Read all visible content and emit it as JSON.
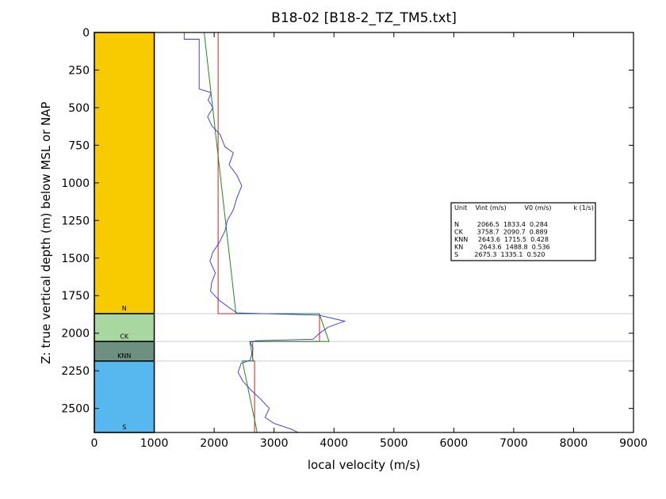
{
  "chart_data": {
    "type": "line",
    "title": "B18-02 [B18-2_TZ_TM5.txt]",
    "xlabel": "local velocity (m/s)",
    "ylabel": "Z: true vertical depth (m) below MSL or NAP",
    "xlim": [
      0,
      9000
    ],
    "ylim": [
      0,
      2660
    ],
    "y_inverted": true,
    "grid": false,
    "xticks": [
      0,
      1000,
      2000,
      3000,
      4000,
      5000,
      6000,
      7000,
      8000,
      9000
    ],
    "yticks": [
      0,
      250,
      500,
      750,
      1000,
      1250,
      1500,
      1750,
      2000,
      2250,
      2500
    ],
    "xtick_labels": [
      "0",
      "1000",
      "2000",
      "3000",
      "4000",
      "5000",
      "6000",
      "7000",
      "8000",
      "9000"
    ],
    "ytick_labels": [
      "0",
      "250",
      "500",
      "750",
      "1000",
      "1250",
      "1500",
      "1750",
      "2000",
      "2250",
      "2500"
    ],
    "units": [
      {
        "name": "N",
        "top": 0,
        "bottom": 1870,
        "color": "#f8cb00"
      },
      {
        "name": "CK",
        "top": 1870,
        "bottom": 2055,
        "color": "#a8d8a0"
      },
      {
        "name": "KNN",
        "top": 2055,
        "bottom": 2185,
        "color": "#6e9080"
      },
      {
        "name": "S",
        "top": 2185,
        "bottom": 2660,
        "color": "#56b8ee"
      }
    ],
    "unit_label_depths": [
      {
        "name": "N",
        "depth": 1850
      },
      {
        "name": "CK",
        "depth": 2035
      },
      {
        "name": "KNN",
        "depth": 2165
      },
      {
        "name": "S",
        "depth": 2640
      }
    ],
    "boundaries": [
      1870,
      2055,
      2185,
      2660
    ],
    "column_x_range": [
      0,
      1000
    ],
    "table": {
      "header": "Unit    Vint (m/s)         V0 (m/s)           k (1/s)",
      "rows": [
        "N         2066.5  1833.4  0.284",
        "CK       3758.7  2090.7  0.889",
        "KNN     2643.6  1715.5  0.428",
        "KN        2643.6  1488.8  0.536",
        "S        2675.3  1335.1  0.520"
      ]
    },
    "series": [
      {
        "kind": "vint",
        "color": "#d02020",
        "segments": [
          {
            "v": 2066.5,
            "z0": 0,
            "z1": 1870
          },
          {
            "v": 3758.7,
            "z0": 1870,
            "z1": 2055
          },
          {
            "v": 2643.6,
            "z0": 2055,
            "z1": 2185
          },
          {
            "v": 2675.3,
            "z0": 2185,
            "z1": 2660
          }
        ]
      },
      {
        "kind": "v0k",
        "color": "#1a8c1a",
        "segments": [
          {
            "v0": 1833.4,
            "k": 0.284,
            "z0": 0,
            "z1": 1870
          },
          {
            "v0": 2090.7,
            "k": 0.889,
            "z0": 1870,
            "z1": 2055
          },
          {
            "v0": 1715.5,
            "k": 0.428,
            "z0": 2055,
            "z1": 2185
          },
          {
            "v0": 1335.1,
            "k": 0.52,
            "z0": 2185,
            "z1": 2660
          }
        ]
      },
      {
        "kind": "log",
        "color": "#3030ee",
        "points": [
          [
            1500,
            0
          ],
          [
            1500,
            45
          ],
          [
            1750,
            45
          ],
          [
            1750,
            375
          ],
          [
            1780,
            380
          ],
          [
            1950,
            400
          ],
          [
            1900,
            450
          ],
          [
            1980,
            500
          ],
          [
            1890,
            560
          ],
          [
            1960,
            620
          ],
          [
            2100,
            680
          ],
          [
            2180,
            760
          ],
          [
            2320,
            800
          ],
          [
            2250,
            880
          ],
          [
            2380,
            950
          ],
          [
            2460,
            1020
          ],
          [
            2380,
            1100
          ],
          [
            2320,
            1180
          ],
          [
            2220,
            1250
          ],
          [
            2180,
            1320
          ],
          [
            2080,
            1400
          ],
          [
            1980,
            1460
          ],
          [
            1930,
            1520
          ],
          [
            2020,
            1600
          ],
          [
            1960,
            1660
          ],
          [
            1940,
            1720
          ],
          [
            2080,
            1780
          ],
          [
            2250,
            1830
          ],
          [
            2380,
            1865
          ],
          [
            3750,
            1880
          ],
          [
            4180,
            1920
          ],
          [
            3900,
            1960
          ],
          [
            3760,
            2000
          ],
          [
            3650,
            2040
          ],
          [
            2700,
            2050
          ],
          [
            2600,
            2060
          ],
          [
            2650,
            2100
          ],
          [
            2620,
            2150
          ],
          [
            2600,
            2180
          ],
          [
            2450,
            2200
          ],
          [
            2400,
            2260
          ],
          [
            2480,
            2320
          ],
          [
            2620,
            2380
          ],
          [
            2780,
            2440
          ],
          [
            2920,
            2500
          ],
          [
            2850,
            2560
          ],
          [
            3000,
            2600
          ],
          [
            3300,
            2640
          ],
          [
            3400,
            2660
          ]
        ]
      }
    ]
  }
}
